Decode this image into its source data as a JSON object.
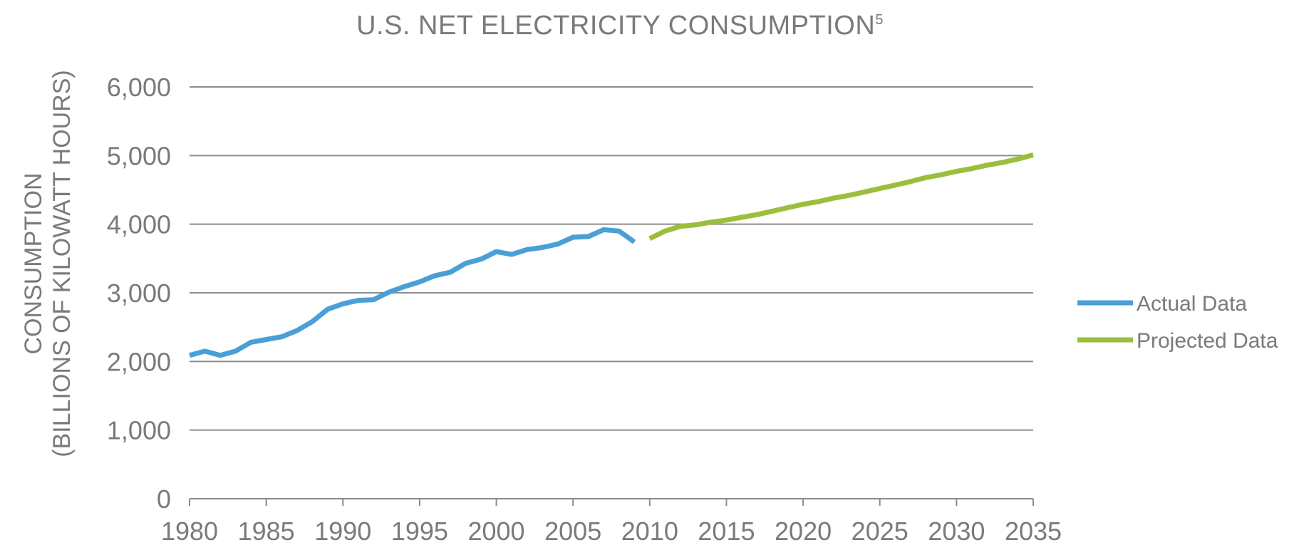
{
  "chart_data": {
    "type": "line",
    "title": "U.S. NET ELECTRICITY CONSUMPTION",
    "title_superscript": "5",
    "ylabel_line1": "CONSUMPTION",
    "ylabel_line2": "(BILLIONS OF KILOWATT HOURS)",
    "xlabel": "",
    "xlim": [
      1980,
      2035
    ],
    "ylim": [
      0,
      6000
    ],
    "x_ticks": [
      "1980",
      "1985",
      "1990",
      "1995",
      "2000",
      "2005",
      "2010",
      "2015",
      "2020",
      "2025",
      "2030",
      "2035"
    ],
    "y_ticks": [
      "0",
      "1,000",
      "2,000",
      "3,000",
      "4,000",
      "5,000",
      "6,000"
    ],
    "y_tick_values": [
      0,
      1000,
      2000,
      3000,
      4000,
      5000,
      6000
    ],
    "grid": true,
    "legend_position": "right",
    "series": [
      {
        "name": "Actual Data",
        "color": "#4a9fd6",
        "x": [
          1980,
          1981,
          1982,
          1983,
          1984,
          1985,
          1986,
          1987,
          1988,
          1989,
          1990,
          1991,
          1992,
          1993,
          1994,
          1995,
          1996,
          1997,
          1998,
          1999,
          2000,
          2001,
          2002,
          2003,
          2004,
          2005,
          2006,
          2007,
          2008,
          2009
        ],
        "values": [
          2090,
          2150,
          2090,
          2150,
          2280,
          2320,
          2360,
          2450,
          2580,
          2760,
          2840,
          2890,
          2900,
          3010,
          3090,
          3160,
          3250,
          3300,
          3430,
          3490,
          3600,
          3560,
          3630,
          3660,
          3710,
          3810,
          3820,
          3920,
          3900,
          3740
        ]
      },
      {
        "name": "Projected Data",
        "color": "#9bbe3c",
        "x": [
          2010,
          2011,
          2012,
          2013,
          2014,
          2015,
          2016,
          2017,
          2018,
          2019,
          2020,
          2021,
          2022,
          2023,
          2024,
          2025,
          2026,
          2027,
          2028,
          2029,
          2030,
          2031,
          2032,
          2033,
          2034,
          2035
        ],
        "values": [
          3790,
          3900,
          3970,
          3990,
          4030,
          4060,
          4100,
          4140,
          4190,
          4240,
          4290,
          4330,
          4380,
          4420,
          4470,
          4520,
          4570,
          4620,
          4680,
          4720,
          4770,
          4810,
          4860,
          4900,
          4950,
          5010
        ]
      }
    ]
  }
}
